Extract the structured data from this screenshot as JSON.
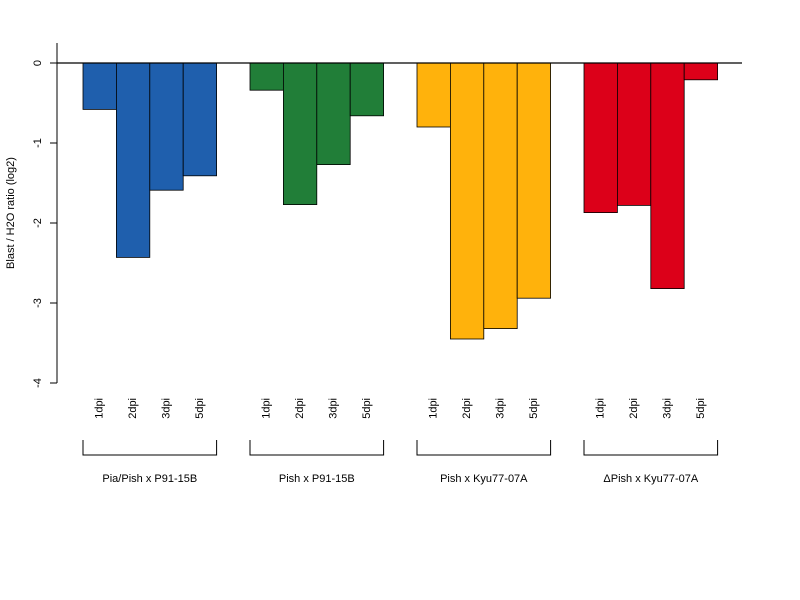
{
  "chart_data": {
    "type": "bar",
    "ylabel": "Blast / H2O ratio (log2)",
    "ylim": [
      -4,
      0.25
    ],
    "yticks": [
      0,
      -1,
      -2,
      -3,
      -4
    ],
    "grid": false,
    "legend": "none",
    "groups": [
      {
        "label": "Pia/Pish x P91-15B",
        "color": "#1F5FAD",
        "categories": [
          "1dpi",
          "2dpi",
          "3dpi",
          "5dpi"
        ],
        "values": [
          -0.58,
          -2.43,
          -1.59,
          -1.41
        ]
      },
      {
        "label": "Pish x P91-15B",
        "color": "#217E38",
        "categories": [
          "1dpi",
          "2dpi",
          "3dpi",
          "5dpi"
        ],
        "values": [
          -0.34,
          -1.77,
          -1.27,
          -0.66
        ]
      },
      {
        "label": "Pish x Kyu77-07A",
        "color": "#FFB20C",
        "categories": [
          "1dpi",
          "2dpi",
          "3dpi",
          "5dpi"
        ],
        "values": [
          -0.8,
          -3.45,
          -3.32,
          -2.94
        ]
      },
      {
        "label": "ΔPish x Kyu77-07A",
        "color": "#DC0019",
        "categories": [
          "1dpi",
          "2dpi",
          "3dpi",
          "5dpi"
        ],
        "values": [
          -1.87,
          -1.78,
          -2.82,
          -0.21
        ]
      }
    ]
  }
}
